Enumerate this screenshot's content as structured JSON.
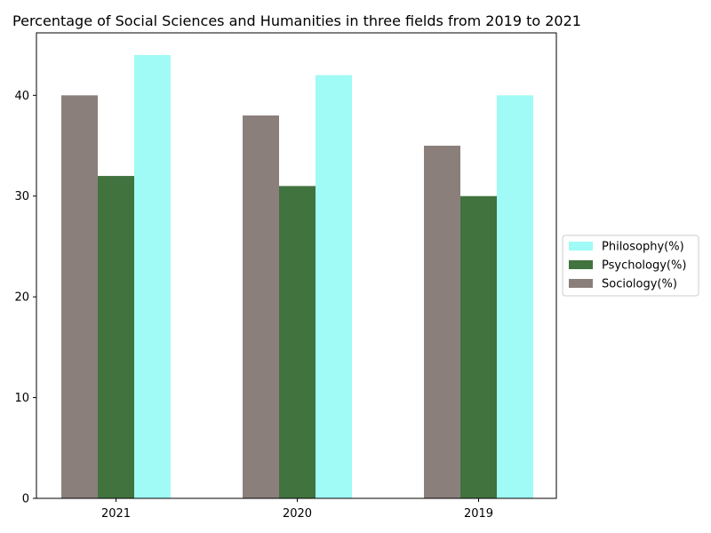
{
  "chart_data": {
    "type": "bar",
    "title": "Percentage of Social Sciences and Humanities in three fields from 2019 to 2021",
    "xlabel": "",
    "ylabel": "",
    "categories": [
      "2021",
      "2020",
      "2019"
    ],
    "series": [
      {
        "name": "Sociology(%)",
        "color": "#8b7f7b",
        "values": [
          40,
          38,
          35
        ]
      },
      {
        "name": "Psychology(%)",
        "color": "#41733f",
        "values": [
          32,
          31,
          30
        ]
      },
      {
        "name": "Philosophy(%)",
        "color": "#a0faf5",
        "values": [
          44,
          42,
          40
        ]
      }
    ],
    "ylim": [
      0,
      46.2
    ],
    "yticks": [
      0,
      10,
      20,
      30,
      40
    ],
    "legend_order": [
      "Philosophy(%)",
      "Psychology(%)",
      "Sociology(%)"
    ],
    "legend_position": "right",
    "grid": false
  }
}
